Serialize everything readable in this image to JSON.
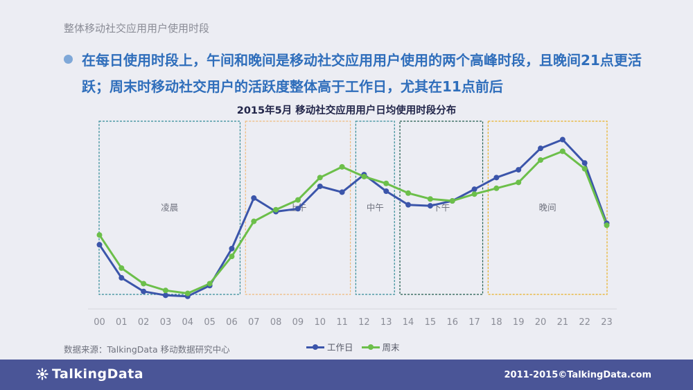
{
  "header": {
    "section_title": "整体移动社交应用用户使用时段",
    "headline": "在每日使用时段上，午间和晚间是移动社交应用用户使用的两个高峰时段，且晚间21点更活跃；周末时移动社交用户的活跃度整体高于工作日，尤其在11点前后"
  },
  "chart_data": {
    "type": "line",
    "title": "2015年5月 移动社交应用用户日均使用时段分布",
    "categories": [
      "00",
      "01",
      "02",
      "03",
      "04",
      "05",
      "06",
      "07",
      "08",
      "09",
      "10",
      "11",
      "12",
      "13",
      "14",
      "15",
      "16",
      "17",
      "18",
      "19",
      "20",
      "21",
      "22",
      "23"
    ],
    "series": [
      {
        "name": "工作日",
        "color": "#3b55aa",
        "values": [
          3.3,
          1.6,
          0.9,
          0.7,
          0.65,
          1.2,
          3.1,
          5.7,
          5.0,
          5.15,
          6.3,
          6.0,
          6.9,
          6.05,
          5.35,
          5.3,
          5.55,
          6.15,
          6.75,
          7.15,
          8.25,
          8.7,
          7.5,
          4.4
        ]
      },
      {
        "name": "周末",
        "color": "#6cbf4a",
        "values": [
          3.8,
          2.1,
          1.3,
          0.95,
          0.8,
          1.3,
          2.7,
          4.5,
          5.1,
          5.6,
          6.75,
          7.3,
          6.8,
          6.45,
          5.95,
          5.65,
          5.55,
          5.9,
          6.2,
          6.5,
          7.65,
          8.1,
          7.2,
          4.3
        ]
      }
    ],
    "ylim": [
      0,
      10
    ],
    "grid": false,
    "legend_position": "bottom",
    "period_annotations": [
      {
        "label": "凌晨",
        "start": "00",
        "end": "06",
        "color": "#2f8a96"
      },
      {
        "label": "上午",
        "start": "07",
        "end": "11",
        "color": "#f0b878"
      },
      {
        "label": "中午",
        "start": "12",
        "end": "13",
        "color": "#2f8a96"
      },
      {
        "label": "下午",
        "start": "14",
        "end": "17",
        "color": "#1d5a4a"
      },
      {
        "label": "晚间",
        "start": "18",
        "end": "23",
        "color": "#e8b020"
      }
    ]
  },
  "footer": {
    "source": "数据来源：TalkingData 移动数据研究中心",
    "logo_text": "TalkingData",
    "copyright": "2011-2015©TalkingData.com"
  }
}
